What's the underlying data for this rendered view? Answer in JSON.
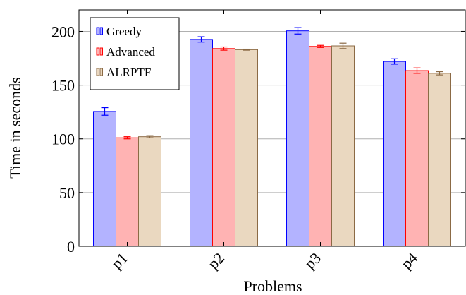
{
  "chart_data": {
    "type": "bar",
    "categories": [
      "p1",
      "p2",
      "p3",
      "p4"
    ],
    "series": [
      {
        "name": "Greedy",
        "values": [
          125.5,
          192.5,
          200.5,
          172
        ],
        "errors": [
          3.5,
          2.5,
          3,
          2.5
        ],
        "fill": "#b3b3ff",
        "stroke": "#0000ff"
      },
      {
        "name": "Advanced",
        "values": [
          101,
          184,
          186,
          163.5
        ],
        "errors": [
          1,
          1.5,
          1,
          2.5
        ],
        "fill": "#ffb3b3",
        "stroke": "#ff0000"
      },
      {
        "name": "ALRPTF",
        "values": [
          102,
          183,
          186.5,
          161
        ],
        "errors": [
          1,
          0.5,
          2.5,
          1.5
        ],
        "fill": "#ead8c0",
        "stroke": "#8b6a45"
      }
    ],
    "xlabel": "Problems",
    "ylabel": "Time in seconds",
    "ylim": [
      0,
      220
    ],
    "yticks": [
      0,
      50,
      100,
      150,
      200
    ],
    "grid": "horizontal",
    "legend_position": "top-left"
  }
}
